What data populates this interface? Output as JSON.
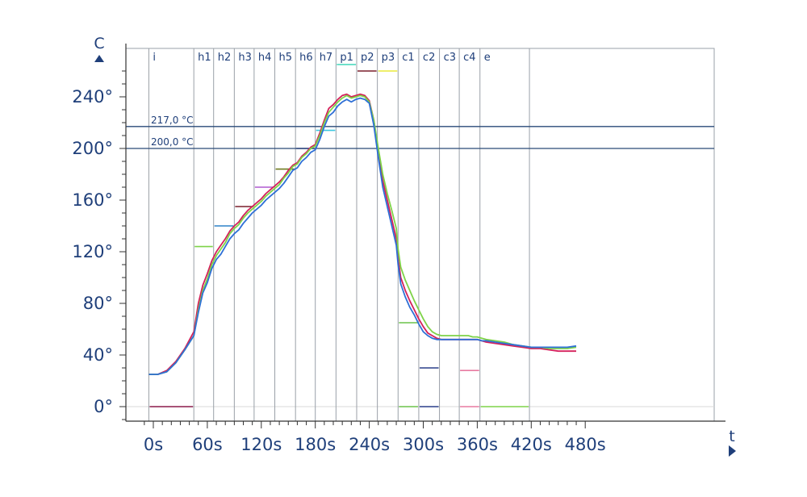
{
  "chart_data": {
    "type": "line",
    "xlabel": "t",
    "ylabel": "C",
    "xlim": [
      -15,
      485
    ],
    "ylim": [
      -15,
      272
    ],
    "x_ticks": [
      0,
      60,
      120,
      180,
      240,
      300,
      360,
      420,
      480
    ],
    "x_tick_labels": [
      "0s",
      "60s",
      "120s",
      "180s",
      "240s",
      "300s",
      "360s",
      "420s",
      "480s"
    ],
    "y_ticks": [
      0,
      40,
      80,
      120,
      160,
      200,
      240
    ],
    "y_tick_labels": [
      "0°",
      "40°",
      "80°",
      "120°",
      "160°",
      "200°",
      "240°"
    ],
    "reference_lines": [
      {
        "value": 217,
        "label": "217,0 °C"
      },
      {
        "value": 200,
        "label": "200,0 °C"
      }
    ],
    "zones": [
      {
        "label": "i",
        "start": -5,
        "end": 45,
        "limits": [
          {
            "value": 0,
            "color": "#8b1a4a"
          }
        ]
      },
      {
        "label": "h1",
        "start": 45,
        "end": 67,
        "limits": [
          {
            "value": 124,
            "color": "#7ed348"
          }
        ]
      },
      {
        "label": "h2",
        "start": 67,
        "end": 90,
        "limits": [
          {
            "value": 140,
            "color": "#2d82c8"
          }
        ]
      },
      {
        "label": "h3",
        "start": 90,
        "end": 112,
        "limits": [
          {
            "value": 155,
            "color": "#7a1f2b"
          }
        ]
      },
      {
        "label": "h4",
        "start": 112,
        "end": 135,
        "limits": [
          {
            "value": 170,
            "color": "#b05ad0"
          }
        ]
      },
      {
        "label": "h5",
        "start": 135,
        "end": 158,
        "limits": [
          {
            "value": 184,
            "color": "#6f7a1f"
          }
        ]
      },
      {
        "label": "h6",
        "start": 158,
        "end": 180,
        "limits": [
          {
            "value": 200,
            "color": "#2a2a8a"
          }
        ]
      },
      {
        "label": "h7",
        "start": 180,
        "end": 203,
        "limits": [
          {
            "value": 214,
            "color": "#3ec8e0"
          }
        ]
      },
      {
        "label": "p1",
        "start": 203,
        "end": 226,
        "limits": [
          {
            "value": 265,
            "color": "#3ed6b8"
          }
        ]
      },
      {
        "label": "p2",
        "start": 226,
        "end": 249,
        "limits": [
          {
            "value": 260,
            "color": "#7a1f2b"
          }
        ]
      },
      {
        "label": "p3",
        "start": 249,
        "end": 272,
        "limits": [
          {
            "value": 260,
            "color": "#e8e83a"
          }
        ]
      },
      {
        "label": "c1",
        "start": 272,
        "end": 295,
        "limits": [
          {
            "value": 65,
            "color": "#6cc44a"
          },
          {
            "value": 0,
            "color": "#6cc44a"
          }
        ]
      },
      {
        "label": "c2",
        "start": 295,
        "end": 318,
        "limits": [
          {
            "value": 30,
            "color": "#2a3f8a"
          },
          {
            "value": 0,
            "color": "#2a3f8a"
          }
        ]
      },
      {
        "label": "c3",
        "start": 318,
        "end": 340,
        "limits": []
      },
      {
        "label": "c4",
        "start": 340,
        "end": 363,
        "limits": [
          {
            "value": 28,
            "color": "#e87aa0"
          },
          {
            "value": 0,
            "color": "#e87aa0"
          }
        ]
      },
      {
        "label": "e",
        "start": 363,
        "end": 418,
        "limits": [
          {
            "value": 0,
            "color": "#7ed348"
          }
        ]
      }
    ],
    "series": [
      {
        "color": "#d4205a",
        "x": [
          -5,
          5,
          15,
          25,
          35,
          45,
          50,
          55,
          60,
          65,
          70,
          75,
          80,
          85,
          90,
          95,
          100,
          105,
          110,
          115,
          120,
          125,
          130,
          135,
          140,
          145,
          150,
          155,
          160,
          165,
          170,
          175,
          180,
          185,
          190,
          195,
          200,
          205,
          210,
          215,
          220,
          225,
          230,
          235,
          240,
          245,
          250,
          255,
          260,
          265,
          270,
          272,
          275,
          280,
          285,
          290,
          295,
          300,
          305,
          310,
          315,
          320,
          325,
          330,
          335,
          340,
          345,
          350,
          355,
          360,
          365,
          370,
          380,
          390,
          400,
          410,
          420,
          430,
          440,
          450,
          460,
          470
        ],
        "y": [
          25,
          25,
          28,
          35,
          45,
          58,
          80,
          94,
          103,
          113,
          120,
          125,
          130,
          136,
          140,
          143,
          148,
          152,
          155,
          158,
          161,
          165,
          168,
          171,
          174,
          178,
          183,
          187,
          189,
          194,
          197,
          201,
          203,
          212,
          222,
          231,
          234,
          238,
          241,
          242,
          240,
          241,
          242,
          241,
          237,
          222,
          197,
          175,
          160,
          145,
          130,
          115,
          100,
          90,
          82,
          75,
          68,
          62,
          57,
          55,
          53,
          52,
          52,
          52,
          52,
          52,
          52,
          52,
          52,
          52,
          51,
          50,
          49,
          48,
          47,
          46,
          45,
          45,
          44,
          43,
          43,
          43
        ]
      },
      {
        "color": "#7ed348",
        "x": [
          -5,
          5,
          15,
          25,
          35,
          45,
          50,
          55,
          60,
          65,
          70,
          75,
          80,
          85,
          90,
          95,
          100,
          105,
          110,
          115,
          120,
          125,
          130,
          135,
          140,
          145,
          150,
          155,
          160,
          165,
          170,
          175,
          180,
          185,
          190,
          195,
          200,
          205,
          210,
          215,
          220,
          225,
          230,
          235,
          240,
          245,
          250,
          255,
          260,
          265,
          270,
          272,
          275,
          280,
          285,
          290,
          295,
          300,
          305,
          310,
          315,
          320,
          325,
          330,
          335,
          340,
          345,
          350,
          355,
          360,
          365,
          370,
          380,
          390,
          400,
          410,
          420,
          430,
          440,
          450,
          460,
          470
        ],
        "y": [
          25,
          25,
          27,
          34,
          44,
          55,
          75,
          90,
          99,
          110,
          117,
          122,
          127,
          134,
          138,
          141,
          146,
          150,
          153,
          156,
          159,
          163,
          166,
          169,
          172,
          177,
          181,
          186,
          188,
          193,
          196,
          200,
          202,
          210,
          220,
          228,
          232,
          236,
          239,
          241,
          239,
          240,
          241,
          240,
          236,
          222,
          200,
          180,
          165,
          152,
          138,
          122,
          108,
          98,
          90,
          82,
          75,
          68,
          62,
          58,
          56,
          55,
          55,
          55,
          55,
          55,
          55,
          55,
          54,
          54,
          53,
          52,
          51,
          50,
          48,
          47,
          46,
          46,
          45,
          45,
          45,
          46
        ]
      },
      {
        "color": "#2e6fd6",
        "x": [
          -5,
          5,
          15,
          25,
          35,
          45,
          50,
          55,
          60,
          65,
          70,
          75,
          80,
          85,
          90,
          95,
          100,
          105,
          110,
          115,
          120,
          125,
          130,
          135,
          140,
          145,
          150,
          155,
          160,
          165,
          170,
          175,
          180,
          185,
          190,
          195,
          200,
          205,
          210,
          215,
          220,
          225,
          230,
          235,
          240,
          245,
          250,
          255,
          260,
          265,
          270,
          272,
          275,
          280,
          285,
          290,
          295,
          300,
          305,
          310,
          315,
          320,
          325,
          330,
          335,
          340,
          345,
          350,
          355,
          360,
          365,
          370,
          380,
          390,
          400,
          410,
          420,
          430,
          440,
          450,
          460,
          470
        ],
        "y": [
          25,
          25,
          27,
          34,
          44,
          55,
          73,
          88,
          96,
          107,
          114,
          118,
          124,
          130,
          134,
          137,
          142,
          146,
          150,
          153,
          156,
          160,
          163,
          166,
          169,
          173,
          178,
          183,
          185,
          190,
          193,
          197,
          199,
          207,
          217,
          225,
          228,
          233,
          236,
          238,
          236,
          238,
          239,
          238,
          235,
          218,
          193,
          170,
          155,
          140,
          125,
          110,
          95,
          85,
          77,
          71,
          64,
          58,
          55,
          53,
          52,
          52,
          52,
          52,
          52,
          52,
          52,
          52,
          52,
          52,
          51,
          51,
          50,
          49,
          48,
          47,
          46,
          46,
          46,
          46,
          46,
          47
        ]
      }
    ]
  }
}
